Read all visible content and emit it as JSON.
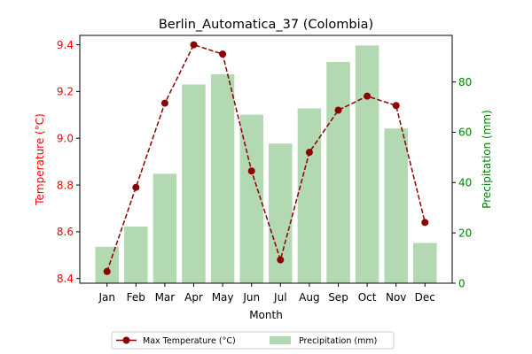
{
  "chart_data": {
    "type": "bar+line",
    "title": "Berlin_Automatica_37 (Colombia)",
    "xlabel": "Month",
    "categories": [
      "Jan",
      "Feb",
      "Mar",
      "Apr",
      "May",
      "Jun",
      "Jul",
      "Aug",
      "Sep",
      "Oct",
      "Nov",
      "Dec"
    ],
    "left_axis": {
      "label": "Temperature (°C)",
      "color": "#ff0000",
      "ylim": [
        8.38,
        9.44
      ],
      "ticks": [
        8.4,
        8.6,
        8.8,
        9.0,
        9.2,
        9.4
      ],
      "tick_labels": [
        "8.4",
        "8.6",
        "8.8",
        "9.0",
        "9.2",
        "9.4"
      ]
    },
    "right_axis": {
      "label": "Precipitation (mm)",
      "color": "#008000",
      "ylim": [
        0,
        98.5
      ],
      "ticks": [
        0,
        20,
        40,
        60,
        80
      ],
      "tick_labels": [
        "0",
        "20",
        "40",
        "60",
        "80"
      ]
    },
    "series": [
      {
        "name": "Max Temperature (°C)",
        "kind": "line",
        "axis": "left",
        "color": "#8b0000",
        "style": "dashed",
        "marker": "circle",
        "values": [
          8.43,
          8.79,
          9.15,
          9.4,
          9.36,
          8.86,
          8.48,
          8.94,
          9.12,
          9.18,
          9.14,
          8.64
        ]
      },
      {
        "name": "Precipitation (mm)",
        "kind": "bar",
        "axis": "right",
        "color": "#b2d9b2",
        "values": [
          14.5,
          22.5,
          43.5,
          79,
          83,
          67,
          55.5,
          69.5,
          88,
          94.5,
          61.5,
          16
        ]
      }
    ],
    "legend": {
      "placement": "bottom-center",
      "entries": [
        "Max Temperature (°C)",
        "Precipitation (mm)"
      ]
    },
    "grid": false
  }
}
